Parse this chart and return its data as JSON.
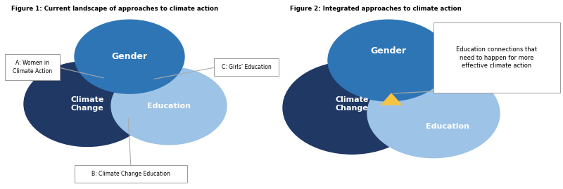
{
  "fig1_title": "Figure 1: Current landscape of approaches to climate action",
  "fig2_title": "Figure 2: Integrated approaches to climate action",
  "color_gender": "#2E75B6",
  "color_climate": "#1F3864",
  "color_education": "#9DC3E6",
  "label_gender": "Gender",
  "label_climate": "Climate\nChange",
  "label_education": "Education",
  "fig1_label_a": "A: Women in\nClimate Action",
  "fig1_label_b": "B: Climate Change Education",
  "fig1_label_c": "C: Girls’ Education",
  "fig2_annotation": "Education connections that\nneed to happen for more\neffective climate action",
  "background_color": "#FFFFFF",
  "text_white": "#FFFFFF",
  "text_dark": "#000000",
  "border_color": "#2B5EA7",
  "line_color": "#AAAAAA",
  "yellow": "#F5C242"
}
